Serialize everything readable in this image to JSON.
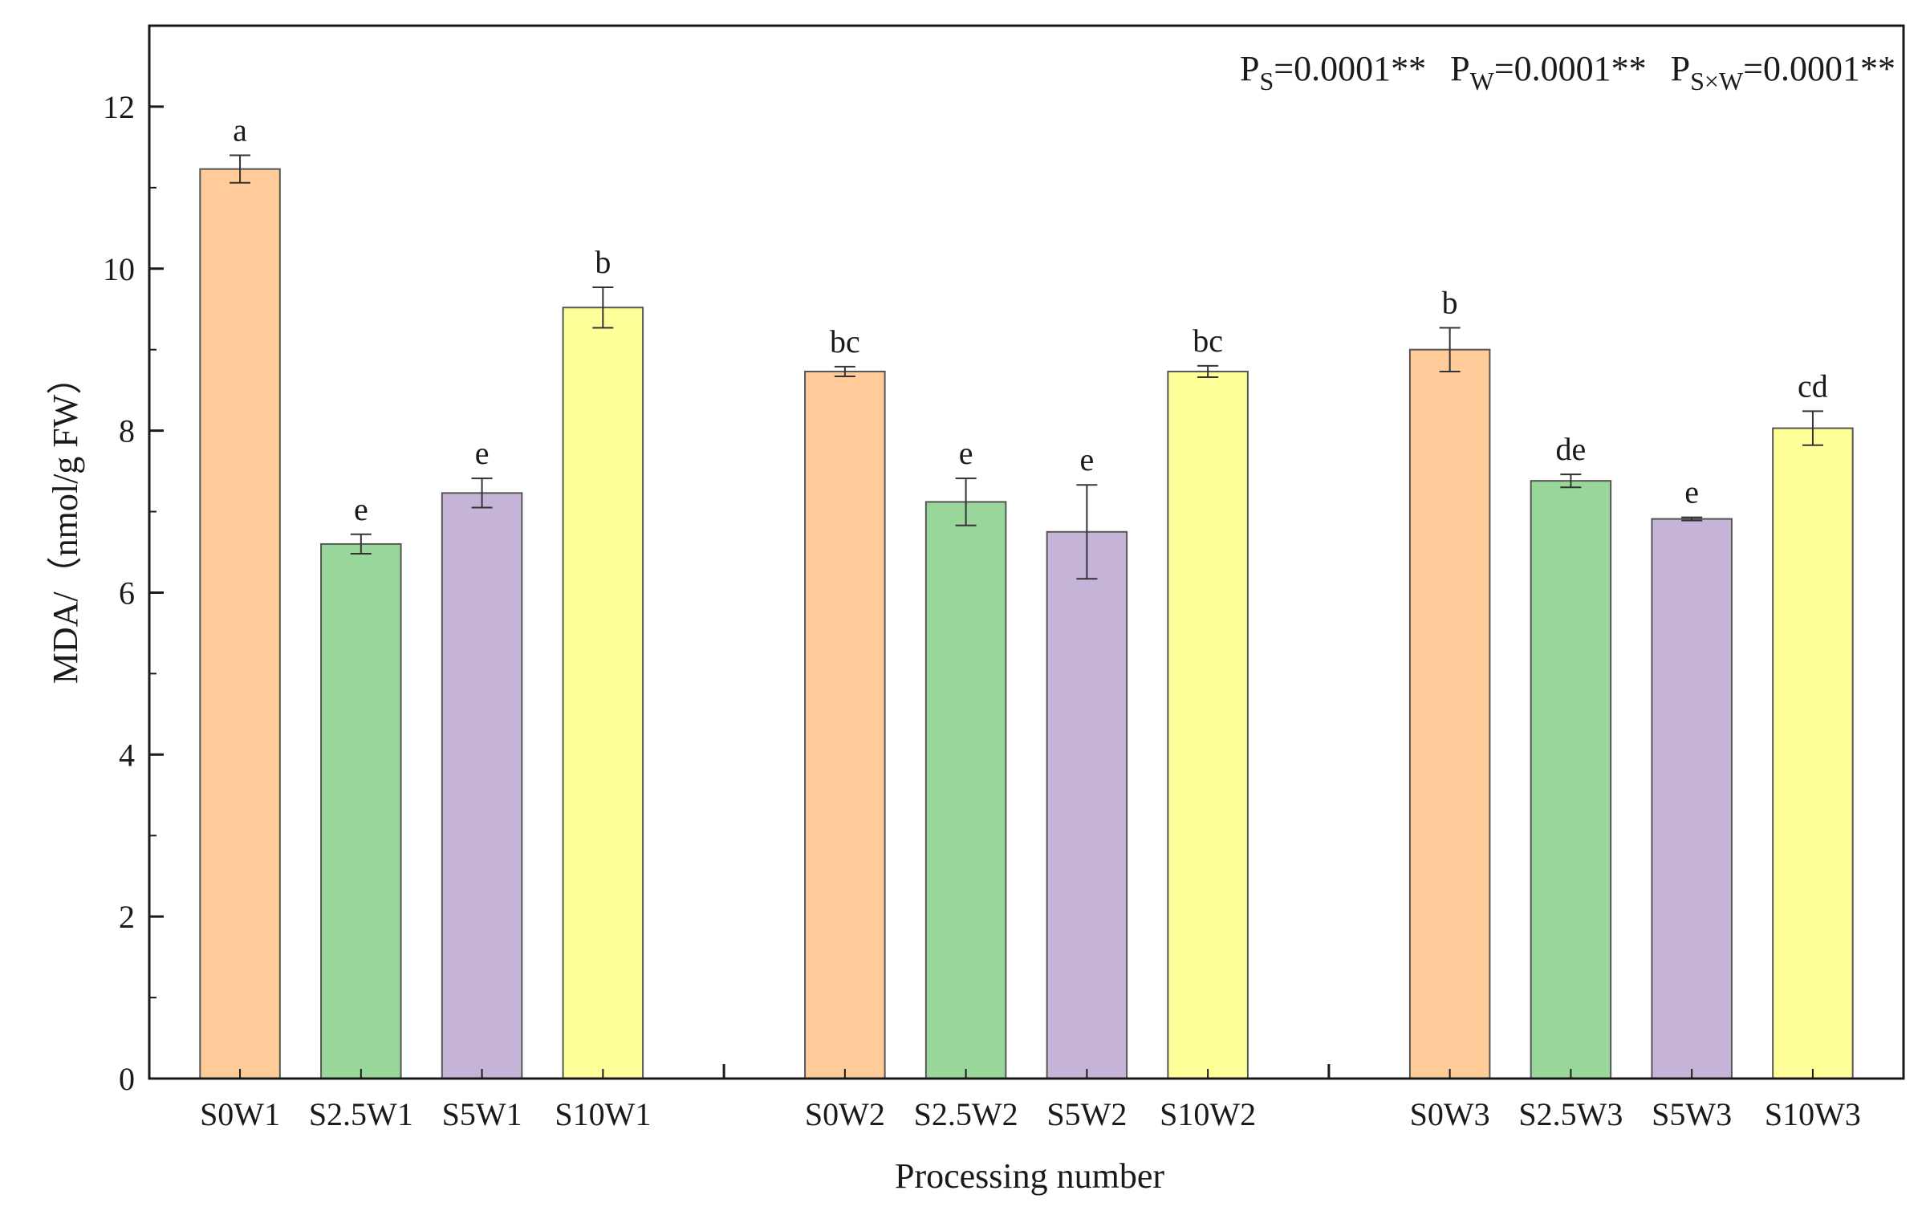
{
  "chart_data": {
    "type": "bar",
    "title": "",
    "xlabel": "Processing number",
    "ylabel": "MDA/（nmol/g FW）",
    "ylim": [
      0,
      13
    ],
    "yticks": [
      0,
      2,
      4,
      6,
      8,
      10,
      12
    ],
    "grid": false,
    "annotation": {
      "p_s": {
        "base": "P",
        "sub": "S",
        "text": "=0.0001**"
      },
      "p_w": {
        "base": "P",
        "sub": "W",
        "text": "=0.0001**"
      },
      "p_sw": {
        "base": "P",
        "sub": "S×W",
        "text": "=0.0001**"
      }
    },
    "groups": [
      {
        "name": "W1",
        "bars": [
          {
            "label": "S0W1",
            "value": 11.23,
            "error": 0.17,
            "letter": "a",
            "color": "#FFCC99"
          },
          {
            "label": "S2.5W1",
            "value": 6.6,
            "error": 0.12,
            "letter": "e",
            "color": "#99D699"
          },
          {
            "label": "S5W1",
            "value": 7.23,
            "error": 0.18,
            "letter": "e",
            "color": "#C5B3D8"
          },
          {
            "label": "S10W1",
            "value": 9.52,
            "error": 0.25,
            "letter": "b",
            "color": "#FFFF99"
          }
        ]
      },
      {
        "name": "W2",
        "bars": [
          {
            "label": "S0W2",
            "value": 8.73,
            "error": 0.06,
            "letter": "bc",
            "color": "#FFCC99"
          },
          {
            "label": "S2.5W2",
            "value": 7.12,
            "error": 0.29,
            "letter": "e",
            "color": "#99D699"
          },
          {
            "label": "S5W2",
            "value": 6.75,
            "error": 0.58,
            "letter": "e",
            "color": "#C5B3D8"
          },
          {
            "label": "S10W2",
            "value": 8.73,
            "error": 0.07,
            "letter": "bc",
            "color": "#FFFF99"
          }
        ]
      },
      {
        "name": "W3",
        "bars": [
          {
            "label": "S0W3",
            "value": 9.0,
            "error": 0.27,
            "letter": "b",
            "color": "#FFCC99"
          },
          {
            "label": "S2.5W3",
            "value": 7.38,
            "error": 0.08,
            "letter": "de",
            "color": "#99D699"
          },
          {
            "label": "S5W3",
            "value": 6.91,
            "error": 0.02,
            "letter": "e",
            "color": "#C5B3D8"
          },
          {
            "label": "S10W3",
            "value": 8.03,
            "error": 0.21,
            "letter": "cd",
            "color": "#FFFF99"
          }
        ]
      }
    ]
  }
}
